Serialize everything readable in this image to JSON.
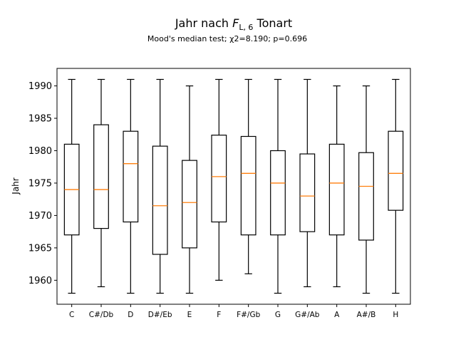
{
  "chart_data": {
    "type": "boxplot",
    "title_main": "Jahr nach ",
    "title_var": "F",
    "title_sub": "L, 6",
    "title_rest": " Tonart",
    "subtitle": "Mood's median test; χ2=8.190; p=0.696",
    "xlabel": "",
    "ylabel": "Jahr",
    "ylim": [
      1956.3,
      1992.7
    ],
    "yticks": [
      1960,
      1965,
      1970,
      1975,
      1980,
      1985,
      1990
    ],
    "categories": [
      "C",
      "C#/Db",
      "D",
      "D#/Eb",
      "E",
      "F",
      "F#/Gb",
      "G",
      "G#/Ab",
      "A",
      "A#/B",
      "H"
    ],
    "boxes": [
      {
        "min": 1958,
        "q1": 1967,
        "median": 1974,
        "q3": 1981,
        "max": 1991
      },
      {
        "min": 1959,
        "q1": 1968,
        "median": 1974,
        "q3": 1984,
        "max": 1991
      },
      {
        "min": 1958,
        "q1": 1969,
        "median": 1978,
        "q3": 1983,
        "max": 1991
      },
      {
        "min": 1958,
        "q1": 1964,
        "median": 1971.5,
        "q3": 1980.7,
        "max": 1991
      },
      {
        "min": 1958,
        "q1": 1965,
        "median": 1972,
        "q3": 1978.5,
        "max": 1990
      },
      {
        "min": 1960,
        "q1": 1969,
        "median": 1976,
        "q3": 1982.4,
        "max": 1991
      },
      {
        "min": 1961,
        "q1": 1967,
        "median": 1976.5,
        "q3": 1982.2,
        "max": 1991
      },
      {
        "min": 1958,
        "q1": 1967,
        "median": 1975,
        "q3": 1980,
        "max": 1991
      },
      {
        "min": 1959,
        "q1": 1967.5,
        "median": 1973,
        "q3": 1979.5,
        "max": 1991
      },
      {
        "min": 1959,
        "q1": 1967,
        "median": 1975,
        "q3": 1981,
        "max": 1990
      },
      {
        "min": 1958,
        "q1": 1966.2,
        "median": 1974.5,
        "q3": 1979.7,
        "max": 1990
      },
      {
        "min": 1958,
        "q1": 1970.8,
        "median": 1976.5,
        "q3": 1983,
        "max": 1991
      }
    ],
    "colors": {
      "box": "#000000",
      "median": "#ff7f0e",
      "axis": "#000000"
    },
    "grid": false,
    "legend": "none"
  }
}
